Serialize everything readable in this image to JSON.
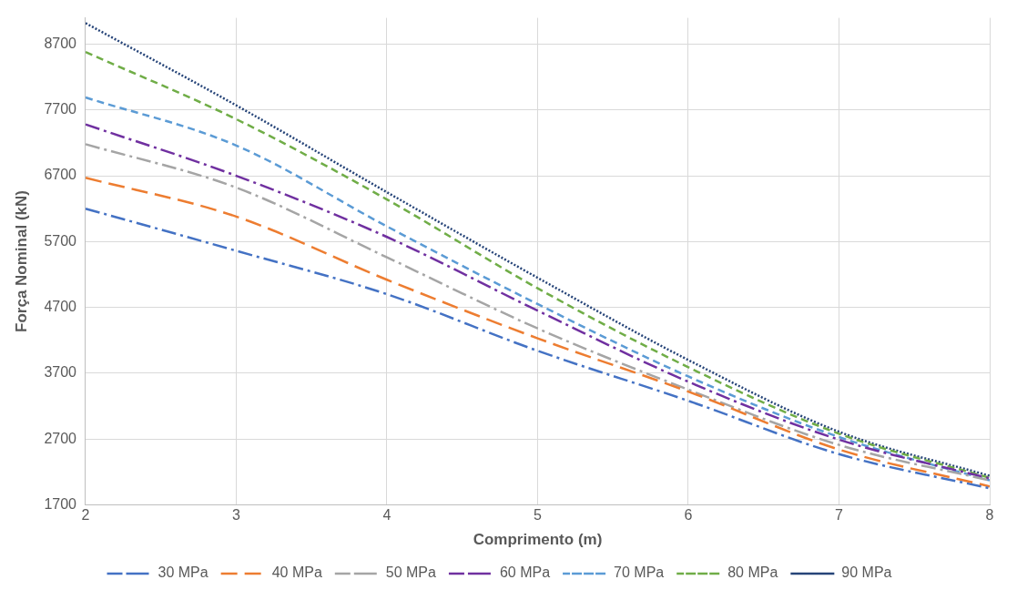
{
  "chart_data": {
    "type": "line",
    "xlabel": "Comprimento (m)",
    "ylabel": "Força Nominal (kN)",
    "x": [
      2,
      3,
      4,
      5,
      6,
      7,
      8
    ],
    "xlim": [
      2,
      8
    ],
    "xticks": [
      2,
      3,
      4,
      5,
      6,
      7,
      8
    ],
    "ylim": [
      1700,
      9100
    ],
    "yticks": [
      1700,
      2700,
      3700,
      4700,
      5700,
      6700,
      7700,
      8700
    ],
    "grid": true,
    "legend": "bottom",
    "marker": "none",
    "series": [
      {
        "name": "30 MPa",
        "color": "#4472c4",
        "line_style": "dashdot",
        "values": [
          6200,
          5560,
          4900,
          4040,
          3280,
          2470,
          1950
        ]
      },
      {
        "name": "40 MPa",
        "color": "#ed7d31",
        "line_style": "longdash",
        "values": [
          6670,
          6080,
          5120,
          4230,
          3420,
          2540,
          1980
        ]
      },
      {
        "name": "50 MPa",
        "color": "#a5a5a5",
        "line_style": "dashdot",
        "values": [
          7180,
          6520,
          5460,
          4380,
          3450,
          2610,
          2070
        ]
      },
      {
        "name": "60 MPa",
        "color": "#7030a0",
        "line_style": "dashdot",
        "values": [
          7480,
          6700,
          5770,
          4650,
          3570,
          2690,
          2100
        ]
      },
      {
        "name": "70 MPa",
        "color": "#5b9bd5",
        "line_style": "dashed",
        "values": [
          7890,
          7160,
          5930,
          4750,
          3650,
          2730,
          2070
        ]
      },
      {
        "name": "80 MPa",
        "color": "#70ad47",
        "line_style": "dashed",
        "values": [
          8580,
          7560,
          6340,
          4990,
          3790,
          2780,
          2110
        ]
      },
      {
        "name": "90 MPa",
        "color": "#264478",
        "line_style": "dotted",
        "values": [
          9020,
          7770,
          6450,
          5150,
          3900,
          2810,
          2140
        ]
      }
    ]
  }
}
